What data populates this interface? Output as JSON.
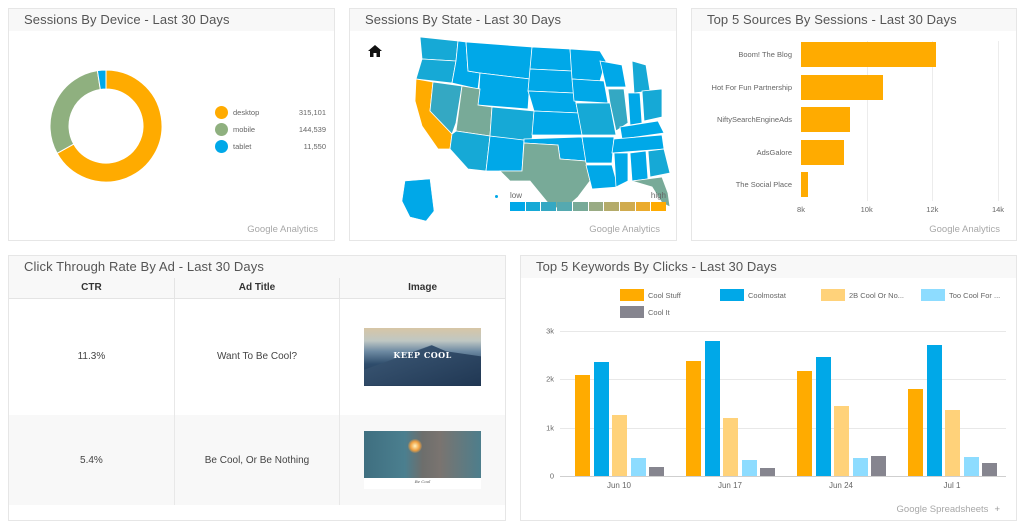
{
  "panels": {
    "device": {
      "title": "Sessions By Device - Last 30 Days",
      "source": "Google Analytics",
      "legend": [
        {
          "label": "desktop",
          "value": "315,101",
          "color": "#ffab00"
        },
        {
          "label": "mobile",
          "value": "144,539",
          "color": "#8fb07f"
        },
        {
          "label": "tablet",
          "value": "11,550",
          "color": "#00a8e8"
        }
      ]
    },
    "state": {
      "title": "Sessions By State - Last 30 Days",
      "source": "Google Analytics",
      "home_icon": "home-icon",
      "scale_low": "low",
      "scale_high": "high",
      "scale_colors": [
        "#00a8e8",
        "#16a9d6",
        "#34a8c3",
        "#55a9b0",
        "#78aa98",
        "#99ab84",
        "#b4ab6a",
        "#d0ab4e",
        "#ebab2c",
        "#ffab00"
      ]
    },
    "sources": {
      "title": "Top 5 Sources By Sessions - Last 30 Days",
      "source": "Google Analytics"
    },
    "ctr": {
      "title": "Click Through Rate By Ad - Last 30 Days",
      "columns": [
        "CTR",
        "Ad Title",
        "Image"
      ],
      "rows": [
        {
          "ctr": "11.3%",
          "title": "Want To Be Cool?",
          "image_text": "KEEP COOL"
        },
        {
          "ctr": "5.4%",
          "title": "Be Cool, Or Be Nothing",
          "image_text": "Be Cool"
        }
      ]
    },
    "keywords": {
      "title": "Top 5 Keywords By Clicks - Last 30 Days",
      "source": "Google Spreadsheets",
      "add_icon": "+"
    }
  },
  "chart_data": [
    {
      "type": "pie",
      "title": "Sessions By Device - Last 30 Days",
      "categories": [
        "desktop",
        "mobile",
        "tablet"
      ],
      "values": [
        315101,
        144539,
        11550
      ],
      "colors": [
        "#ffab00",
        "#8fb07f",
        "#00a8e8"
      ],
      "donut": true,
      "legend_position": "right"
    },
    {
      "type": "heatmap",
      "title": "Sessions By State - Last 30 Days",
      "legend": {
        "low": "low",
        "high": "high"
      },
      "highlighted": {
        "highest": [
          "California"
        ],
        "high_mid": [
          "Texas",
          "New York",
          "Florida",
          "Utah"
        ],
        "mid": [
          "Illinois"
        ]
      }
    },
    {
      "type": "bar",
      "orientation": "horizontal",
      "title": "Top 5 Sources By Sessions - Last 30 Days",
      "categories": [
        "Boom! The Blog",
        "Hot For Fun Partnership",
        "NiftySearchEngineAds",
        "AdsGalore",
        "The Social Place"
      ],
      "values": [
        12100,
        10500,
        9500,
        9300,
        8200
      ],
      "xticks": [
        "8k",
        "10k",
        "12k",
        "14k"
      ],
      "xlim": [
        8000,
        14000
      ],
      "color": "#ffab00",
      "grid": true
    },
    {
      "type": "table",
      "title": "Click Through Rate By Ad - Last 30 Days",
      "columns": [
        "CTR",
        "Ad Title",
        "Image"
      ],
      "rows": [
        [
          "11.3%",
          "Want To Be Cool?",
          "[image: KEEP COOL]"
        ],
        [
          "5.4%",
          "Be Cool, Or Be Nothing",
          "[image: sparkler]"
        ]
      ]
    },
    {
      "type": "bar",
      "title": "Top 5 Keywords By Clicks - Last 30 Days",
      "categories": [
        "Jun 10",
        "Jun 17",
        "Jun 24",
        "Jul 1"
      ],
      "series": [
        {
          "name": "Cool Stuff",
          "color": "#ffab00",
          "values": [
            2100,
            2370,
            2180,
            1790
          ]
        },
        {
          "name": "Coolmostat",
          "color": "#00a8e8",
          "values": [
            2350,
            2800,
            2470,
            2710
          ]
        },
        {
          "name": "2B Cool Or No...",
          "color": "#ffd27a",
          "values": [
            1260,
            1200,
            1450,
            1370
          ]
        },
        {
          "name": "Too Cool For ...",
          "color": "#8ddcff",
          "values": [
            370,
            340,
            370,
            390
          ]
        },
        {
          "name": "Cool It",
          "color": "#86858f",
          "values": [
            190,
            160,
            410,
            270
          ]
        }
      ],
      "yticks": [
        "0",
        "1k",
        "2k",
        "3k"
      ],
      "ylim": [
        0,
        3000
      ],
      "legend_position": "top",
      "grid": true
    }
  ]
}
